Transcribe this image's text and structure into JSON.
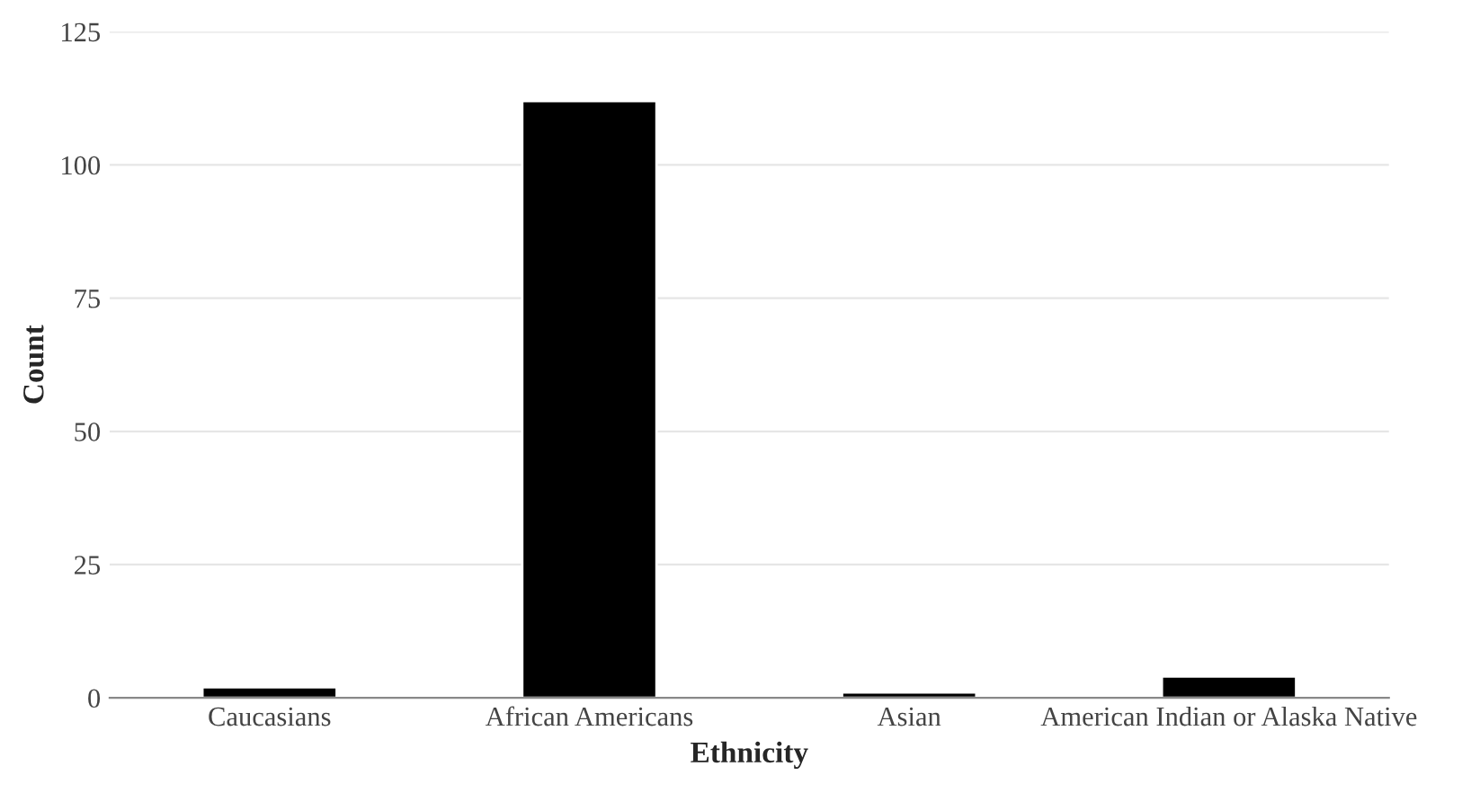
{
  "chart_data": {
    "type": "bar",
    "xlabel": "Ethnicity",
    "ylabel": "Count",
    "categories": [
      "Caucasians",
      "African Americans",
      "Asian",
      "American Indian or Alaska Native"
    ],
    "values": [
      2,
      112,
      1,
      4
    ],
    "color": "#000000",
    "ylim": [
      0,
      125
    ],
    "yticks": [
      0,
      25,
      50,
      75,
      100,
      125
    ],
    "grid": "y"
  }
}
